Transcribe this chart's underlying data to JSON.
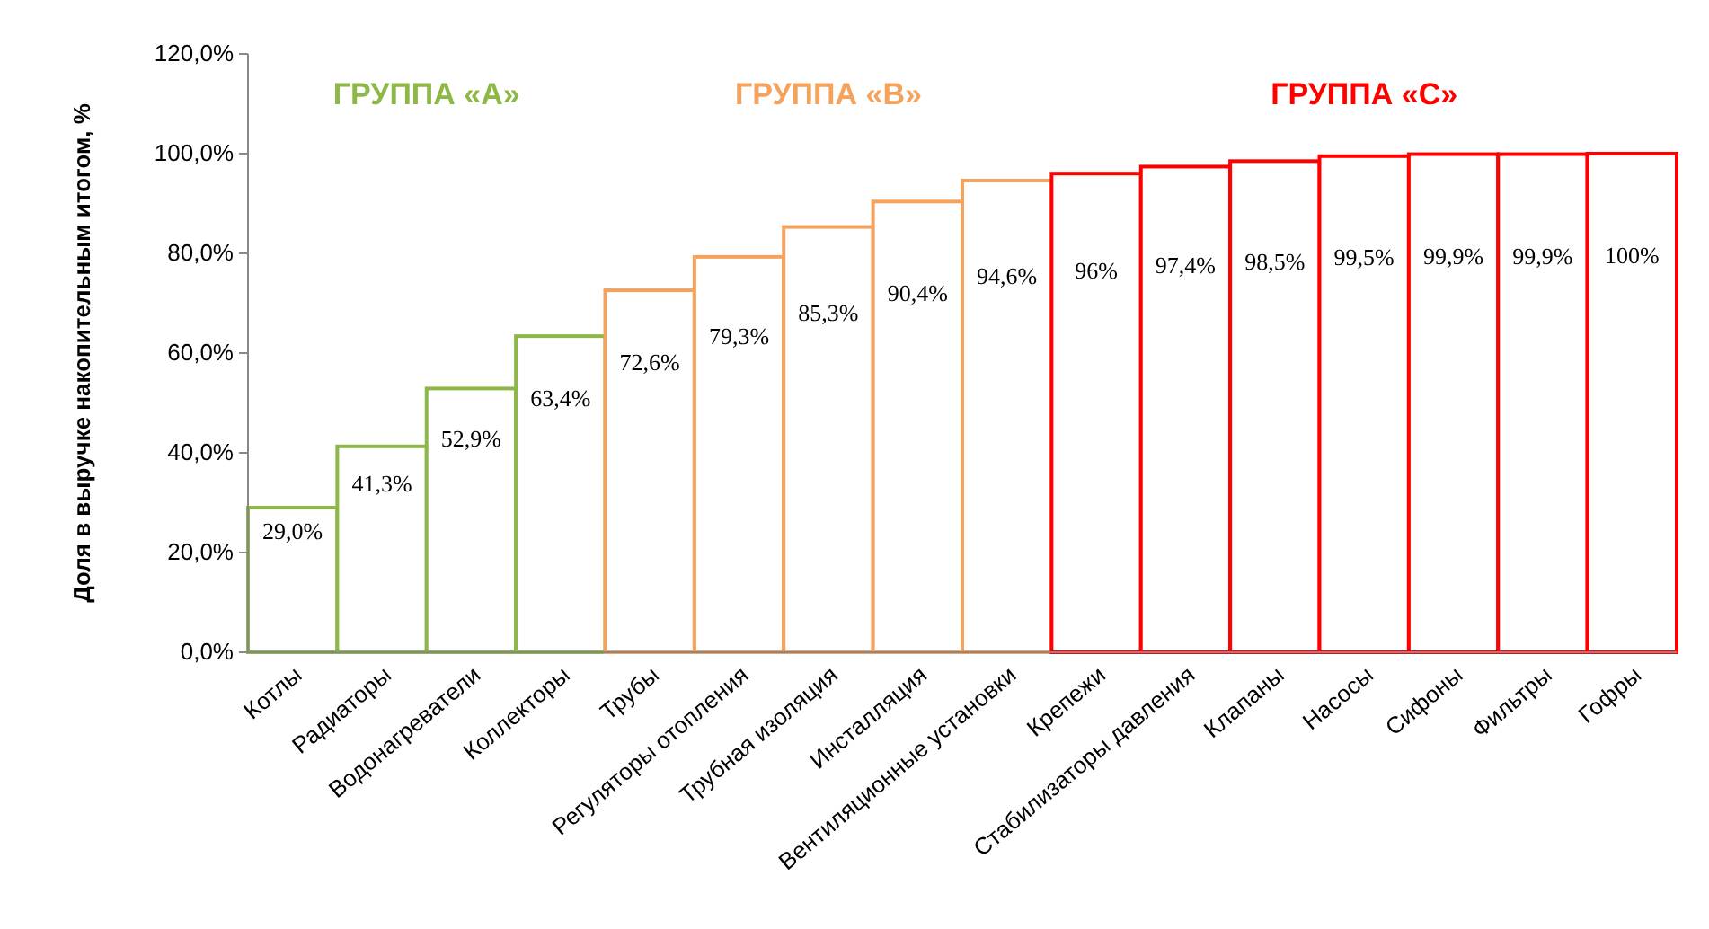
{
  "chart_data": {
    "type": "bar",
    "ylabel": "Доля в выручке накопительным итогом, %",
    "categories": [
      "Котлы",
      "Радиаторы",
      "Водонагреватели",
      "Коллекторы",
      "Трубы",
      "Регуляторы отопления",
      "Трубная изоляция",
      "Инсталляция",
      "Вентиляционные установки",
      "Крепежи",
      "Стабилизаторы давления",
      "Клапаны",
      "Насосы",
      "Сифоны",
      "Фильтры",
      "Гофры"
    ],
    "series": [
      {
        "name": "ГРУППА «А»",
        "color": "#8db848",
        "values": [
          29.0,
          41.3,
          52.9,
          63.4,
          null,
          null,
          null,
          null,
          null,
          null,
          null,
          null,
          null,
          null,
          null,
          null
        ],
        "value_labels": [
          "29,0%",
          "41,3%",
          "52,9%",
          "63,4%",
          null,
          null,
          null,
          null,
          null,
          null,
          null,
          null,
          null,
          null,
          null,
          null
        ]
      },
      {
        "name": "ГРУППА «В»",
        "color": "#f5a35c",
        "values": [
          null,
          null,
          null,
          null,
          72.6,
          79.3,
          85.3,
          90.4,
          94.6,
          null,
          null,
          null,
          null,
          null,
          null,
          null
        ],
        "value_labels": [
          null,
          null,
          null,
          null,
          "72,6%",
          "79,3%",
          "85,3%",
          "90,4%",
          "94,6%",
          null,
          null,
          null,
          null,
          null,
          null,
          null
        ]
      },
      {
        "name": "ГРУППА «С»",
        "color": "#ff0000",
        "values": [
          null,
          null,
          null,
          null,
          null,
          null,
          null,
          null,
          null,
          96,
          97.4,
          98.5,
          99.5,
          99.9,
          99.9,
          100
        ],
        "value_labels": [
          null,
          null,
          null,
          null,
          null,
          null,
          null,
          null,
          null,
          "96%",
          "97,4%",
          "98,5%",
          "99,5%",
          "99,9%",
          "99,9%",
          "100%"
        ]
      }
    ],
    "ylim": [
      0,
      120
    ],
    "yticks": [
      {
        "value": 0,
        "label": "0,0%"
      },
      {
        "value": 20,
        "label": "20,0%"
      },
      {
        "value": 40,
        "label": "40,0%"
      },
      {
        "value": 60,
        "label": "60,0%"
      },
      {
        "value": 80,
        "label": "80,0%"
      },
      {
        "value": 100,
        "label": "100,0%"
      },
      {
        "value": 120,
        "label": "120,0%"
      }
    ],
    "grid": false
  }
}
